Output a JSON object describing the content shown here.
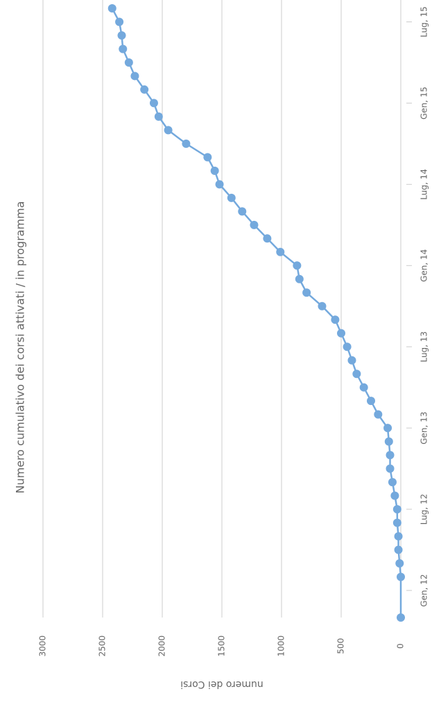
{
  "chart_data": {
    "type": "line",
    "title": "Numero cumulativo dei corsi attivati / in programma",
    "y_label": "numero dei Corsi",
    "x": [
      "2011-11",
      "2012-02",
      "2012-03",
      "2012-04",
      "2012-05",
      "2012-06",
      "2012-07",
      "2012-08",
      "2012-09",
      "2012-10",
      "2012-11",
      "2012-12",
      "2013-01",
      "2013-02",
      "2013-03",
      "2013-04",
      "2013-05",
      "2013-06",
      "2013-07",
      "2013-08",
      "2013-09",
      "2013-10",
      "2013-11",
      "2013-12",
      "2014-01",
      "2014-02",
      "2014-03",
      "2014-04",
      "2014-05",
      "2014-06",
      "2014-07",
      "2014-08",
      "2014-09",
      "2014-10",
      "2014-11",
      "2014-12",
      "2015-01",
      "2015-02",
      "2015-03",
      "2015-04",
      "2015-05",
      "2015-06",
      "2015-07",
      "2015-08"
    ],
    "series": [
      {
        "color": "#74a9dd",
        "values": [
          0,
          0,
          10,
          20,
          20,
          30,
          30,
          50,
          70,
          90,
          90,
          100,
          110,
          190,
          250,
          310,
          370,
          410,
          450,
          500,
          550,
          660,
          790,
          850,
          870,
          1010,
          1120,
          1230,
          1330,
          1420,
          1520,
          1560,
          1620,
          1800,
          1950,
          2030,
          2070,
          2150,
          2230,
          2280,
          2330,
          2340,
          2360,
          2420
        ]
      }
    ],
    "xlim": [
      "2011-11",
      "2015-08"
    ],
    "xticks": [
      {
        "value": "2012-01",
        "label": "Gen, 12"
      },
      {
        "value": "2012-07",
        "label": "Lug, 12"
      },
      {
        "value": "2013-01",
        "label": "Gen, 13"
      },
      {
        "value": "2013-07",
        "label": "Lug, 13"
      },
      {
        "value": "2014-01",
        "label": "Gen, 14"
      },
      {
        "value": "2014-07",
        "label": "Lug, 14"
      },
      {
        "value": "2015-01",
        "label": "Gen, 15"
      },
      {
        "value": "2015-07",
        "label": "Lug, 15"
      }
    ],
    "ylim": [
      0,
      3000
    ],
    "yticks": [
      0,
      500,
      1000,
      1500,
      2000,
      2500,
      3000
    ],
    "grid": true
  }
}
